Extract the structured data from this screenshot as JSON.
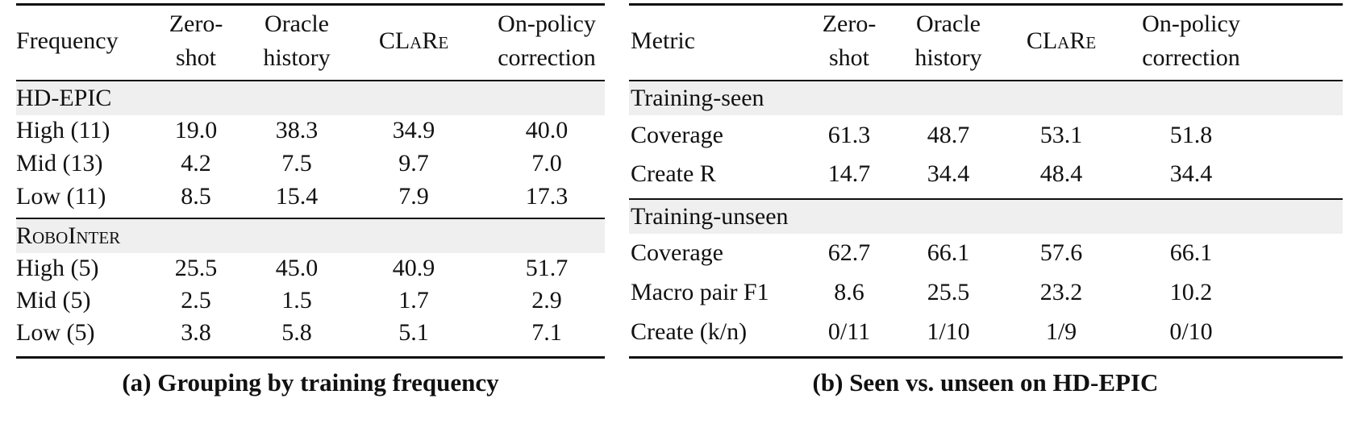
{
  "tables": [
    {
      "headers": [
        [
          "Frequency"
        ],
        [
          "Zero-",
          "shot"
        ],
        [
          "Oracle",
          "history"
        ],
        [
          "CLaRe"
        ],
        [
          "On-policy",
          "correction"
        ]
      ],
      "sections": [
        {
          "title": "HD-EPIC",
          "rows": [
            [
              "High (11)",
              "19.0",
              "38.3",
              "34.9",
              "40.0"
            ],
            [
              "Mid (13)",
              "4.2",
              "7.5",
              "9.7",
              "7.0"
            ],
            [
              "Low (11)",
              "8.5",
              "15.4",
              "7.9",
              "17.3"
            ]
          ]
        },
        {
          "title": "RoboInter",
          "rows": [
            [
              "High (5)",
              "25.5",
              "45.0",
              "40.9",
              "51.7"
            ],
            [
              "Mid (5)",
              "2.5",
              "1.5",
              "1.7",
              "2.9"
            ],
            [
              "Low (5)",
              "3.8",
              "5.8",
              "5.1",
              "7.1"
            ]
          ]
        }
      ],
      "caption": "(a) Grouping by training frequency"
    },
    {
      "headers": [
        [
          "Metric"
        ],
        [
          "Zero-",
          "shot"
        ],
        [
          "Oracle",
          "history"
        ],
        [
          "CLaRe"
        ],
        [
          "On-policy",
          "correction"
        ]
      ],
      "sections": [
        {
          "title": "Training-seen",
          "rows": [
            [
              "Coverage",
              "61.3",
              "48.7",
              "53.1",
              "51.8"
            ],
            [
              "Create R",
              "14.7",
              "34.4",
              "48.4",
              "34.4"
            ]
          ]
        },
        {
          "title": "Training-unseen",
          "rows": [
            [
              "Coverage",
              "62.7",
              "66.1",
              "57.6",
              "66.1"
            ],
            [
              "Macro pair F1",
              "8.6",
              "25.5",
              "23.2",
              "10.2"
            ],
            [
              "Create (k/n)",
              "0/11",
              "1/10",
              "1/9",
              "0/10"
            ]
          ]
        }
      ],
      "caption": "(b) Seen vs. unseen on HD-EPIC"
    }
  ]
}
